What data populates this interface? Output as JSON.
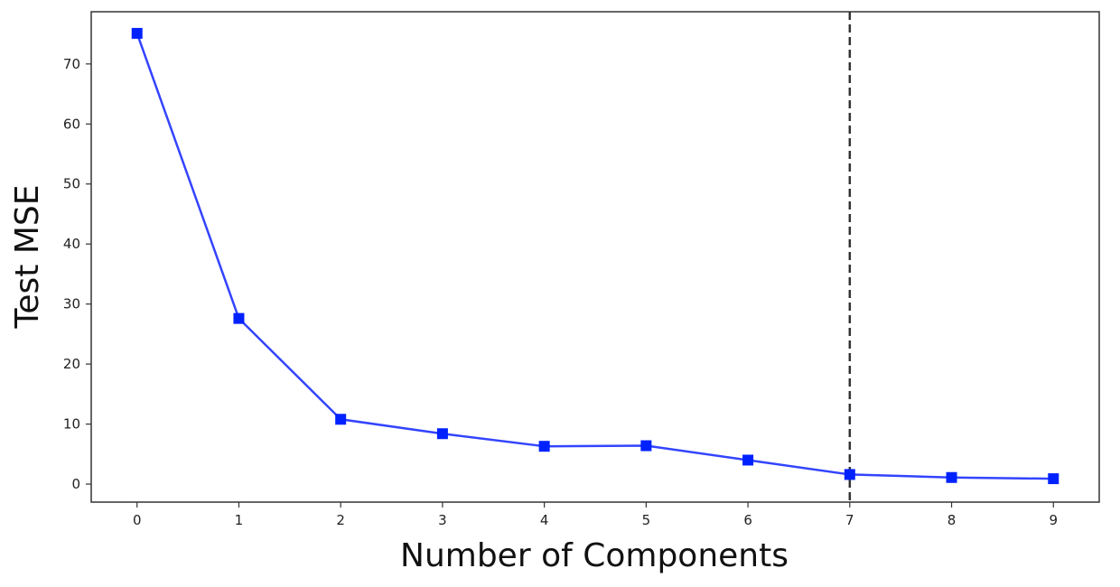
{
  "chart_data": {
    "type": "line",
    "xlabel": "Number of Components",
    "ylabel": "Test MSE",
    "x": [
      0,
      1,
      2,
      3,
      4,
      5,
      6,
      7,
      8,
      9
    ],
    "series": [
      {
        "values": [
          75.1,
          27.6,
          10.8,
          8.4,
          6.3,
          6.4,
          4.0,
          1.6,
          1.1,
          0.9
        ],
        "color": "#0022ff",
        "marker": "square",
        "line_color": "#3344ff"
      }
    ],
    "xlim": [
      -0.45,
      9.45
    ],
    "ylim": [
      -3.0,
      78.7
    ],
    "xticks": [
      0,
      1,
      2,
      3,
      4,
      5,
      6,
      7,
      8,
      9
    ],
    "yticks": [
      0,
      10,
      20,
      30,
      40,
      50,
      60,
      70
    ],
    "vline": {
      "x": 7,
      "style": "dashed",
      "color": "#333333"
    },
    "grid": false,
    "legend": "none"
  }
}
